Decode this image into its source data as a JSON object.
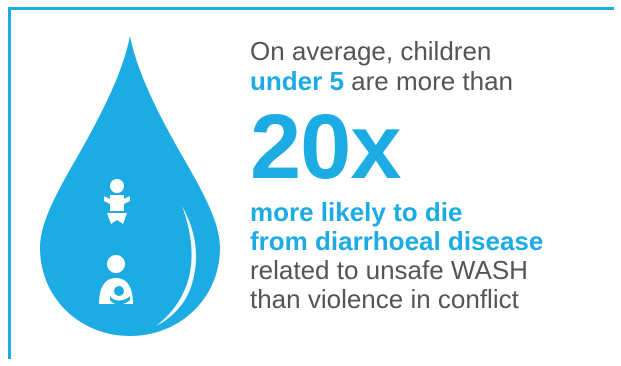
{
  "colors": {
    "accent": "#1cabe2",
    "text": "#555555",
    "background": "#ffffff"
  },
  "icons": {
    "drop": "water-drop-icon",
    "baby": "baby-icon",
    "mother": "mother-and-child-icon"
  },
  "text": {
    "line1": "On average, children",
    "line2_bold": "under 5",
    "line2_rest": " are more than",
    "big": "20x",
    "bold1": "more likely to die",
    "bold2": "from diarrhoeal disease",
    "plain1": "related to unsafe WASH",
    "plain2": "than violence in conflict"
  }
}
